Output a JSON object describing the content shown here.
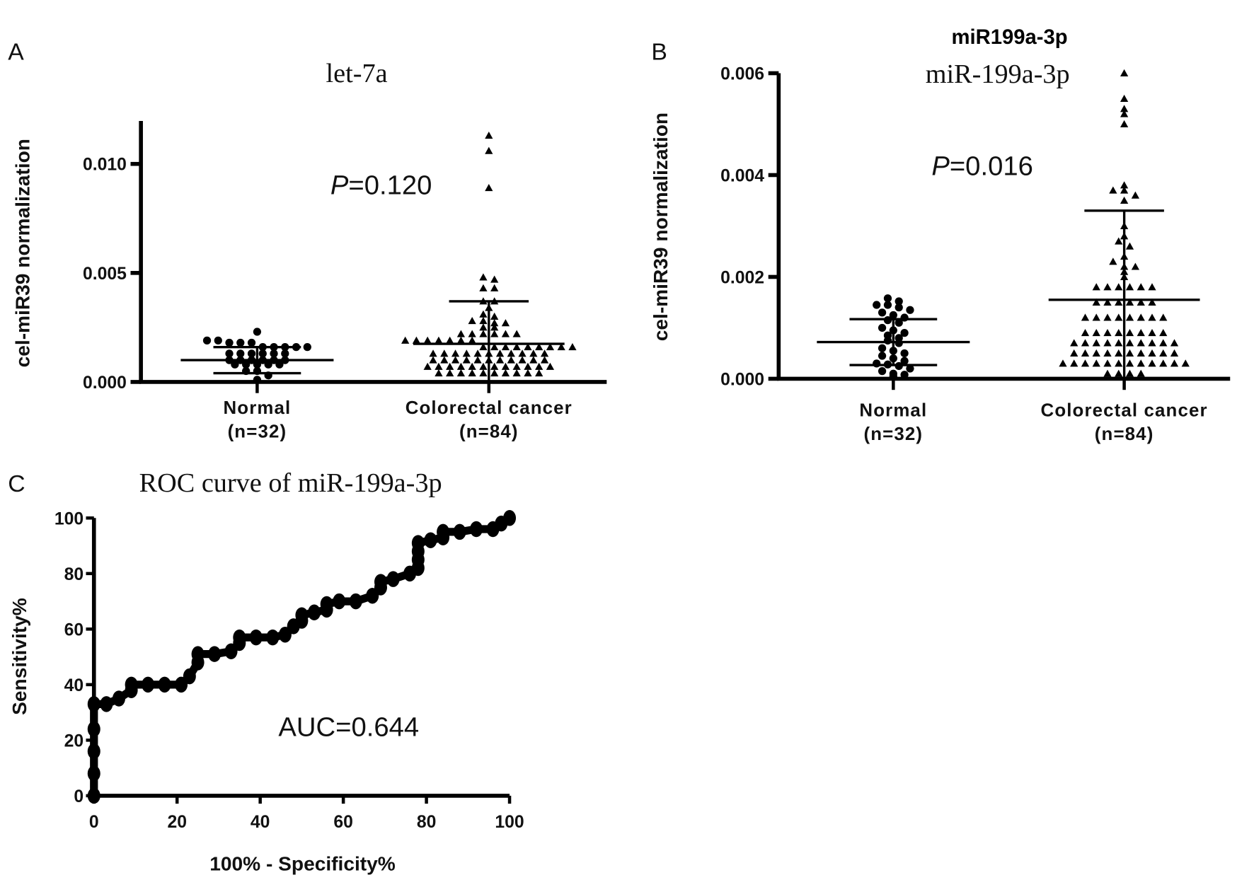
{
  "chart_data": [
    {
      "panel": "A",
      "type": "scatter",
      "title": "let-7a",
      "ylabel": "cel-miR39 normalization",
      "ylim": [
        0,
        0.012
      ],
      "yticks": [
        "0.000",
        "0.005",
        "0.010"
      ],
      "ytick_values": [
        0,
        0.005,
        0.01
      ],
      "annotation_prefix": "P",
      "annotation_value": "=0.120",
      "categories": [
        {
          "name": "Normal",
          "n_label": "(n=32)",
          "marker": "circle",
          "mean": 0.001,
          "sd_upper": 0.0016,
          "sd_lower": 0.0004,
          "values": [
            0.0023,
            0.0019,
            0.0019,
            0.0018,
            0.0018,
            0.0018,
            0.0016,
            0.0016,
            0.0016,
            0.0016,
            0.0016,
            0.0013,
            0.0013,
            0.0013,
            0.0013,
            0.0013,
            0.0013,
            0.001,
            0.001,
            0.001,
            0.001,
            0.001,
            0.001,
            0.0008,
            0.0008,
            0.0008,
            0.0008,
            0.0008,
            0.0005,
            0.0005,
            0.0003,
            0.0001
          ]
        },
        {
          "name": "Colorectal cancer",
          "n_label": "(n=84)",
          "marker": "triangle",
          "mean": 0.00175,
          "sd_upper": 0.0037,
          "sd_lower": 0.0,
          "values": [
            0.0113,
            0.0106,
            0.0089,
            0.0048,
            0.0047,
            0.0043,
            0.0043,
            0.0037,
            0.0037,
            0.0034,
            0.0031,
            0.003,
            0.0028,
            0.0028,
            0.0027,
            0.0027,
            0.0025,
            0.0025,
            0.0022,
            0.0022,
            0.0022,
            0.0022,
            0.0022,
            0.0022,
            0.0019,
            0.0019,
            0.0019,
            0.0019,
            0.0019,
            0.0019,
            0.0019,
            0.0016,
            0.0016,
            0.0016,
            0.0016,
            0.0016,
            0.0016,
            0.0016,
            0.0016,
            0.0016,
            0.0013,
            0.0013,
            0.0013,
            0.0013,
            0.0013,
            0.0013,
            0.0013,
            0.0013,
            0.0013,
            0.0013,
            0.0013,
            0.001,
            0.001,
            0.001,
            0.001,
            0.001,
            0.001,
            0.001,
            0.001,
            0.001,
            0.001,
            0.001,
            0.0007,
            0.0007,
            0.0007,
            0.0007,
            0.0007,
            0.0007,
            0.0007,
            0.0007,
            0.0007,
            0.0007,
            0.0007,
            0.0007,
            0.0004,
            0.0004,
            0.0004,
            0.0004,
            0.0004,
            0.0004,
            0.0004,
            0.0004,
            0.0004,
            0.0004
          ]
        }
      ]
    },
    {
      "panel": "B",
      "type": "scatter",
      "header": "miR199a-3p",
      "title": "miR-199a-3p",
      "ylabel": "cel-miR39 normalization",
      "ylim": [
        0,
        0.006
      ],
      "yticks": [
        "0.000",
        "0.002",
        "0.004",
        "0.006"
      ],
      "ytick_values": [
        0,
        0.002,
        0.004,
        0.006
      ],
      "annotation_prefix": "P",
      "annotation_value": "=0.016",
      "categories": [
        {
          "name": "Normal",
          "n_label": "(n=32)",
          "marker": "circle",
          "mean": 0.00072,
          "sd_upper": 0.00117,
          "sd_lower": 0.00027,
          "values": [
            0.00158,
            0.00152,
            0.00145,
            0.00145,
            0.0014,
            0.00135,
            0.0013,
            0.00125,
            0.0012,
            0.00115,
            0.0011,
            0.001,
            0.00095,
            0.0009,
            0.00085,
            0.0008,
            0.00075,
            0.0007,
            0.0006,
            0.00055,
            0.0005,
            0.00045,
            0.0004,
            0.00035,
            0.0003,
            0.00028,
            0.00025,
            0.0002,
            0.00015,
            0.0001,
            8e-05,
            5e-05
          ]
        },
        {
          "name": "Colorectal cancer",
          "n_label": "(n=84)",
          "marker": "triangle",
          "mean": 0.00155,
          "sd_upper": 0.0033,
          "sd_lower": 0.0,
          "values": [
            0.006,
            0.0055,
            0.0053,
            0.0052,
            0.005,
            0.0038,
            0.0037,
            0.0037,
            0.0036,
            0.0035,
            0.003,
            0.0028,
            0.0027,
            0.0026,
            0.0024,
            0.0023,
            0.0022,
            0.0022,
            0.0021,
            0.002,
            0.0018,
            0.0018,
            0.0018,
            0.0018,
            0.0018,
            0.0018,
            0.0015,
            0.0015,
            0.0015,
            0.0015,
            0.0015,
            0.0015,
            0.0012,
            0.0012,
            0.0012,
            0.0012,
            0.0012,
            0.0012,
            0.0012,
            0.0012,
            0.0009,
            0.0009,
            0.0009,
            0.0009,
            0.0009,
            0.0009,
            0.0009,
            0.0009,
            0.0007,
            0.0007,
            0.0007,
            0.0007,
            0.0007,
            0.0007,
            0.0007,
            0.0007,
            0.0007,
            0.0007,
            0.0005,
            0.0005,
            0.0005,
            0.0005,
            0.0005,
            0.0005,
            0.0005,
            0.0005,
            0.0005,
            0.0005,
            0.0003,
            0.0003,
            0.0003,
            0.0003,
            0.0003,
            0.0003,
            0.0003,
            0.0003,
            0.0003,
            0.0003,
            0.0003,
            0.0003,
            0.0001,
            0.0001,
            0.0001,
            0.0001
          ]
        }
      ]
    },
    {
      "panel": "C",
      "type": "line",
      "title": "ROC curve of miR-199a-3p",
      "xlabel": "100% - Specificity%",
      "ylabel": "Sensitivity%",
      "xlim": [
        0,
        100
      ],
      "ylim": [
        0,
        100
      ],
      "xticks": [
        "0",
        "20",
        "40",
        "60",
        "80",
        "100"
      ],
      "yticks": [
        "0",
        "20",
        "40",
        "60",
        "80",
        "100"
      ],
      "annotation": "AUC=0.644",
      "series": [
        {
          "name": "ROC",
          "points": [
            [
              0,
              0
            ],
            [
              0,
              8
            ],
            [
              0,
              16
            ],
            [
              0,
              24
            ],
            [
              0,
              33
            ],
            [
              3,
              33
            ],
            [
              6,
              35
            ],
            [
              9,
              38
            ],
            [
              9,
              40
            ],
            [
              13,
              40
            ],
            [
              17,
              40
            ],
            [
              21,
              40
            ],
            [
              23,
              43
            ],
            [
              25,
              48
            ],
            [
              25,
              51
            ],
            [
              29,
              51
            ],
            [
              33,
              52
            ],
            [
              35,
              55
            ],
            [
              35,
              57
            ],
            [
              39,
              57
            ],
            [
              43,
              57
            ],
            [
              46,
              58
            ],
            [
              48,
              61
            ],
            [
              50,
              63
            ],
            [
              50,
              65
            ],
            [
              53,
              66
            ],
            [
              56,
              67
            ],
            [
              56,
              69
            ],
            [
              59,
              70
            ],
            [
              63,
              70
            ],
            [
              67,
              72
            ],
            [
              69,
              75
            ],
            [
              69,
              77
            ],
            [
              72,
              78
            ],
            [
              76,
              80
            ],
            [
              78,
              82
            ],
            [
              78,
              85
            ],
            [
              78,
              88
            ],
            [
              78,
              91
            ],
            [
              81,
              92
            ],
            [
              84,
              93
            ],
            [
              84,
              95
            ],
            [
              88,
              95
            ],
            [
              92,
              96
            ],
            [
              96,
              96
            ],
            [
              98,
              98
            ],
            [
              100,
              100
            ]
          ]
        }
      ]
    }
  ],
  "panel_letters": [
    "A",
    "B",
    "C"
  ]
}
